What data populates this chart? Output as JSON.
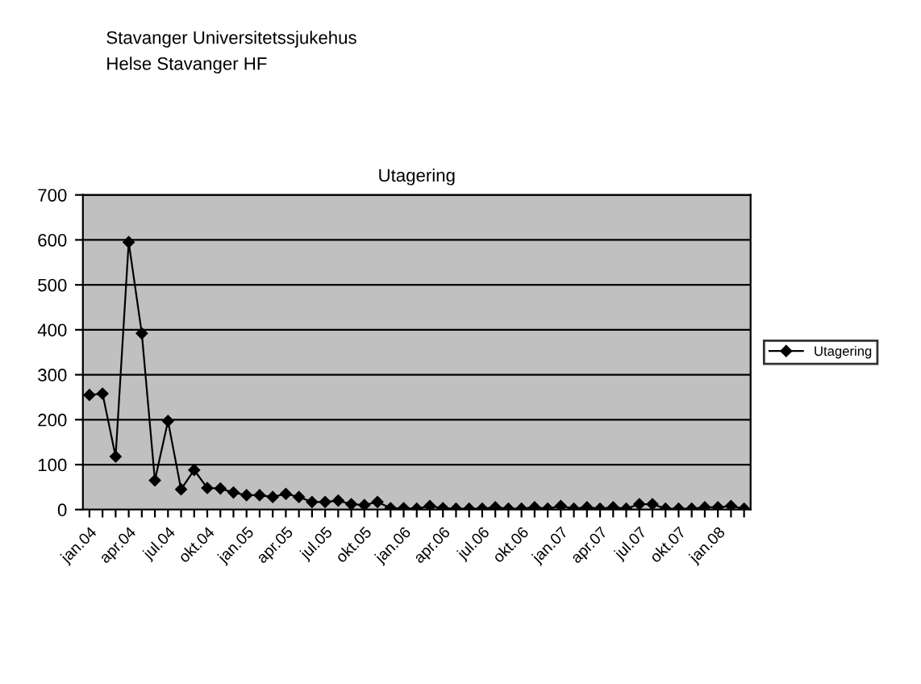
{
  "chart_data": {
    "type": "line",
    "title": "Utagering",
    "annotations": [
      "Stavanger Universitetssjukehus",
      "Helse Stavanger HF"
    ],
    "categories": [
      "jan.04",
      null,
      null,
      "apr.04",
      null,
      null,
      "jul.04",
      null,
      null,
      "okt.04",
      null,
      null,
      "jan.05",
      null,
      null,
      "apr.05",
      null,
      null,
      "jul.05",
      null,
      null,
      "okt.05",
      null,
      null,
      "jan.06",
      null,
      null,
      "apr.06",
      null,
      null,
      "jul.06",
      null,
      null,
      "okt.06",
      null,
      null,
      "jan.07",
      null,
      null,
      "apr.07",
      null,
      null,
      "jul.07",
      null,
      null,
      "okt.07",
      null,
      null,
      "jan.08",
      null,
      null
    ],
    "series": [
      {
        "name": "Utagering",
        "color": "#000000",
        "values": [
          255,
          258,
          118,
          595,
          392,
          65,
          197,
          45,
          88,
          48,
          47,
          38,
          32,
          32,
          28,
          35,
          28,
          17,
          17,
          20,
          12,
          10,
          17,
          3,
          3,
          2,
          8,
          3,
          2,
          2,
          2,
          5,
          2,
          2,
          5,
          2,
          8,
          2,
          5,
          2,
          5,
          2,
          12,
          12,
          2,
          2,
          2,
          5,
          5,
          8,
          2
        ]
      }
    ],
    "ylim": [
      0,
      700
    ],
    "yticks": [
      0,
      100,
      200,
      300,
      400,
      500,
      600,
      700
    ],
    "grid": "y",
    "legend": "right",
    "marker": "diamond",
    "line_style": "solid"
  }
}
